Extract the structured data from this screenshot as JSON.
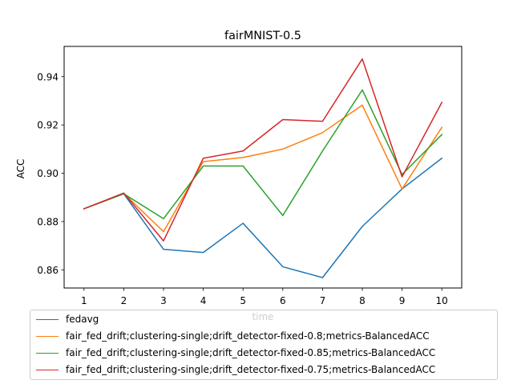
{
  "chart_data": {
    "type": "line",
    "title": "fairMNIST-0.5",
    "xlabel": "time",
    "ylabel": "ACC",
    "x": [
      1,
      2,
      3,
      4,
      5,
      6,
      7,
      8,
      9,
      10
    ],
    "xlim": [
      0.5,
      10.5
    ],
    "ylim": [
      0.8525,
      0.9525
    ],
    "yticks": [
      "0.86",
      "0.88",
      "0.90",
      "0.92",
      "0.94"
    ],
    "ytick_values": [
      0.86,
      0.88,
      0.9,
      0.92,
      0.94
    ],
    "grid": false,
    "legend_placement": "lower-center",
    "series": [
      {
        "name": "fedavg",
        "color": "#1f77b4",
        "values": [
          0.8853,
          0.8915,
          0.8685,
          0.8672,
          0.8793,
          0.8613,
          0.8568,
          0.878,
          0.8935,
          0.9062
        ]
      },
      {
        "name": "fair_fed_drift;clustering-single;drift_detector-fixed-0.8;metrics-BalancedACC",
        "color": "#ff7f0e",
        "values": [
          0.8853,
          0.8917,
          0.8758,
          0.9048,
          0.9065,
          0.91,
          0.9168,
          0.9282,
          0.8935,
          0.919
        ]
      },
      {
        "name": "fair_fed_drift;clustering-single;drift_detector-fixed-0.85;metrics-BalancedACC",
        "color": "#2ca02c",
        "values": [
          0.8853,
          0.8915,
          0.8812,
          0.903,
          0.903,
          0.8825,
          0.9092,
          0.9345,
          0.8995,
          0.916
        ]
      },
      {
        "name": "fair_fed_drift;clustering-single;drift_detector-fixed-0.75;metrics-BalancedACC",
        "color": "#d62728",
        "values": [
          0.8853,
          0.8918,
          0.872,
          0.9062,
          0.9092,
          0.9222,
          0.9215,
          0.9473,
          0.8985,
          0.9293
        ]
      }
    ]
  }
}
